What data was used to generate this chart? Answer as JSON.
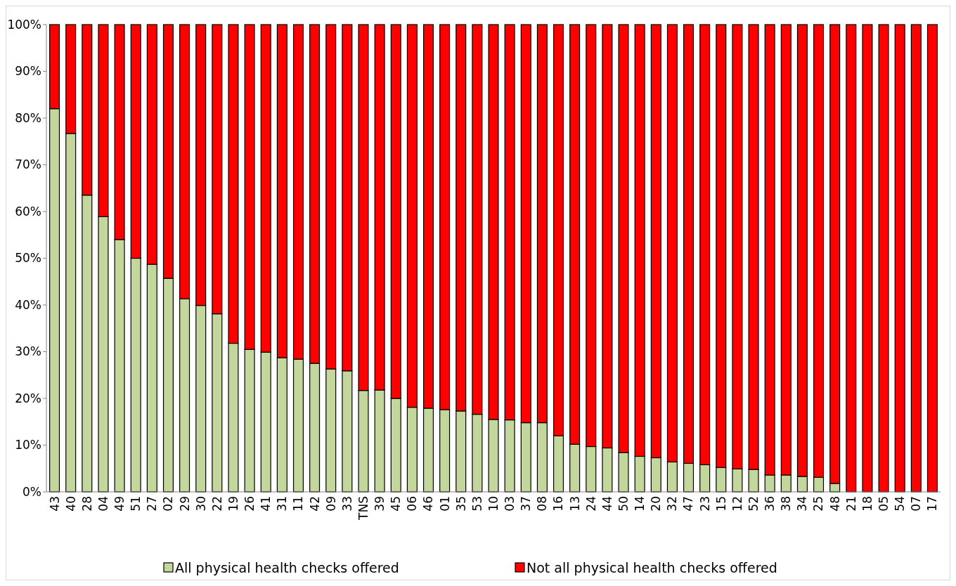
{
  "chart_data": {
    "type": "bar",
    "stacked": true,
    "legend": "bottom",
    "categories": [
      "43",
      "40",
      "28",
      "04",
      "49",
      "51",
      "27",
      "02",
      "29",
      "30",
      "22",
      "19",
      "26",
      "41",
      "31",
      "11",
      "42",
      "09",
      "33",
      "TNS",
      "39",
      "45",
      "06",
      "46",
      "01",
      "35",
      "53",
      "10",
      "03",
      "37",
      "08",
      "16",
      "13",
      "24",
      "44",
      "50",
      "14",
      "20",
      "32",
      "47",
      "23",
      "15",
      "12",
      "52",
      "36",
      "38",
      "34",
      "25",
      "48",
      "21",
      "18",
      "05",
      "54",
      "07",
      "17"
    ],
    "ylim": [
      0,
      100
    ],
    "yticks": [
      {
        "value": 0,
        "label": "0%"
      },
      {
        "value": 10,
        "label": "10%"
      },
      {
        "value": 20,
        "label": "20%"
      },
      {
        "value": 30,
        "label": "30%"
      },
      {
        "value": 40,
        "label": "40%"
      },
      {
        "value": 50,
        "label": "50%"
      },
      {
        "value": 60,
        "label": "60%"
      },
      {
        "value": 70,
        "label": "70%"
      },
      {
        "value": 80,
        "label": "80%"
      },
      {
        "value": 90,
        "label": "90%"
      },
      {
        "value": 100,
        "label": "100%"
      }
    ],
    "series": [
      {
        "name": "All physical health checks offered",
        "color": "#c3d69b",
        "values": [
          82,
          76.7,
          63.5,
          58.9,
          54,
          50,
          48.7,
          45.7,
          41.3,
          39.9,
          38.1,
          31.8,
          30.5,
          29.9,
          28.7,
          28.4,
          27.5,
          26.3,
          25.9,
          21.7,
          21.8,
          20,
          18.1,
          17.9,
          17.6,
          17.3,
          16.6,
          15.5,
          15.4,
          14.8,
          14.8,
          12,
          10.2,
          9.7,
          9.4,
          8.4,
          7.6,
          7.3,
          6.4,
          6.1,
          5.8,
          5.2,
          4.9,
          4.8,
          3.6,
          3.6,
          3.3,
          3.1,
          1.8,
          0,
          0,
          0,
          0,
          0,
          0
        ]
      },
      {
        "name": "Not all physical health checks offered",
        "color": "#ff0000",
        "values": [
          18,
          23.3,
          36.5,
          41.1,
          46,
          50,
          51.3,
          54.3,
          58.7,
          60.1,
          61.9,
          68.2,
          69.5,
          70.1,
          71.3,
          71.6,
          72.5,
          73.7,
          74.1,
          78.3,
          78.2,
          80,
          81.9,
          82.1,
          82.4,
          82.7,
          83.4,
          84.5,
          84.6,
          85.2,
          85.2,
          88,
          89.8,
          90.3,
          90.6,
          91.6,
          92.4,
          92.7,
          93.6,
          93.9,
          94.2,
          94.8,
          95.1,
          95.2,
          96.4,
          96.4,
          96.7,
          96.9,
          98.2,
          100,
          100,
          100,
          100,
          100,
          100
        ]
      }
    ]
  }
}
